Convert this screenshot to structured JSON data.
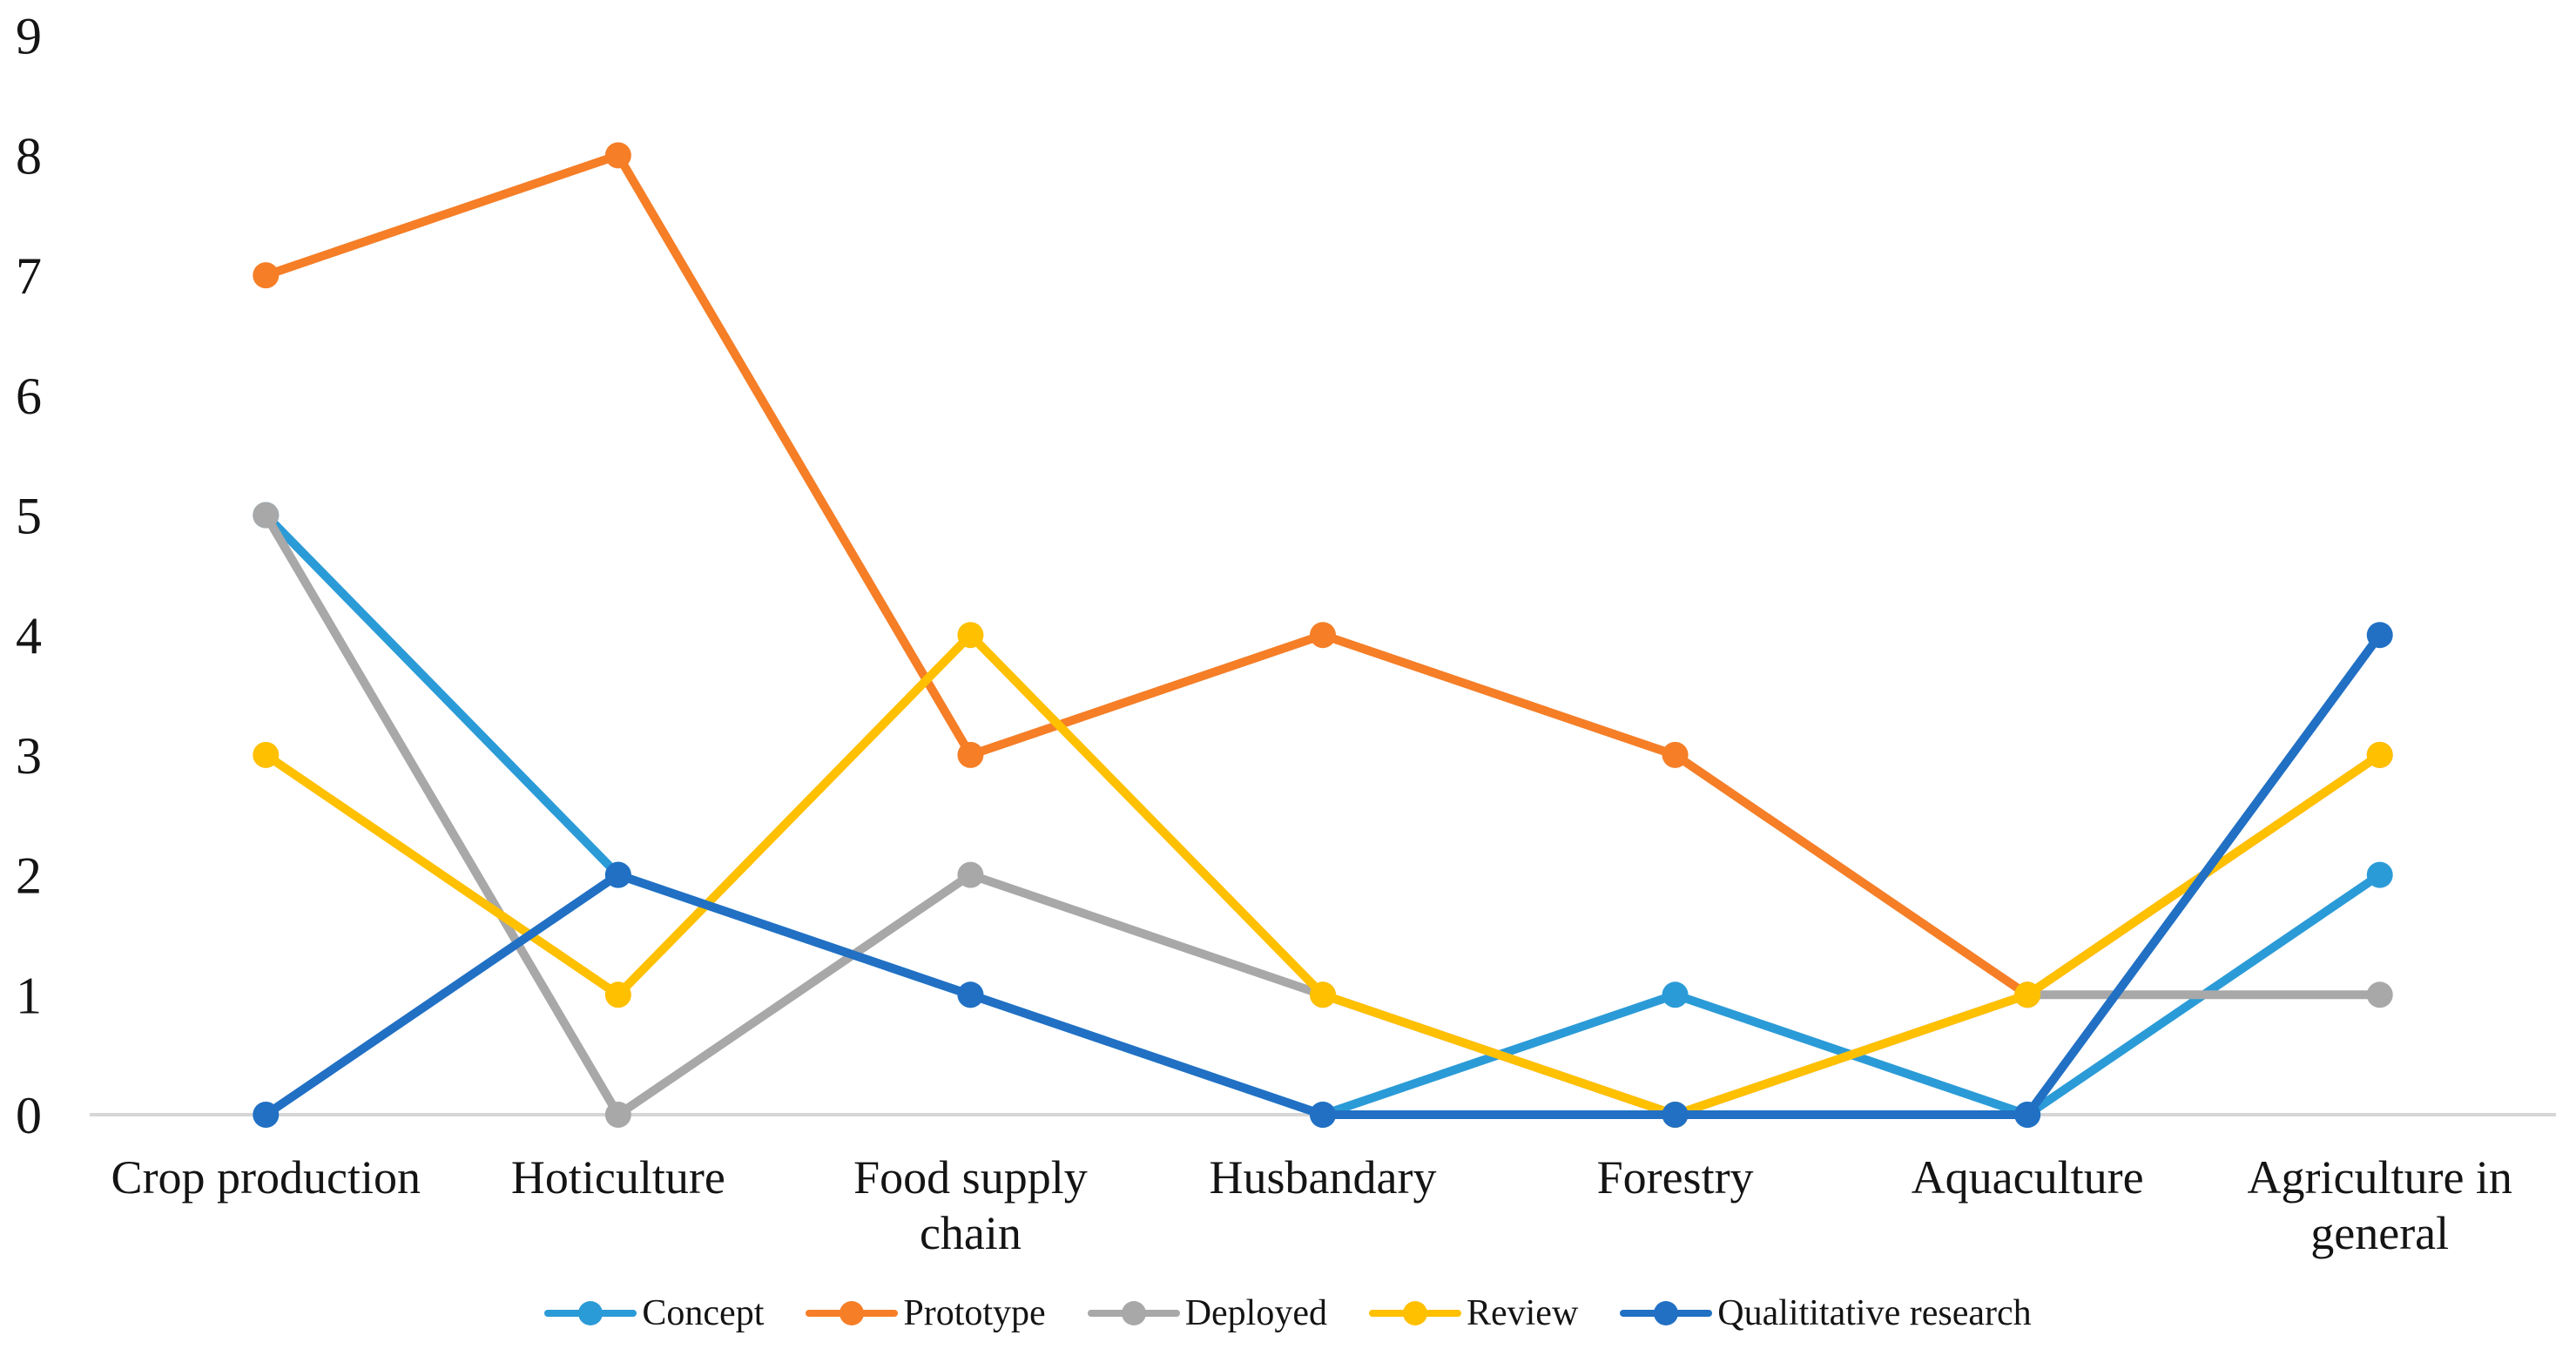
{
  "figure": {
    "background_color": "#FFFFFF",
    "axis_line_color": "#D6D6D6",
    "text_color": "#141414"
  },
  "chart_data": {
    "type": "line",
    "title": "",
    "xlabel": "",
    "ylabel": "",
    "grid": false,
    "legend_position": "bottom",
    "categories": [
      "Crop production",
      "Hoticulture",
      "Food supply chain",
      "Husbandary",
      "Forestry",
      "Aquaculture",
      "Agriculture in general"
    ],
    "x_axis": {
      "tick_lines": [
        [
          "Crop production"
        ],
        [
          "Hoticulture"
        ],
        [
          "Food supply",
          "chain"
        ],
        [
          "Husbandary"
        ],
        [
          "Forestry"
        ],
        [
          "Aquaculture"
        ],
        [
          "Agriculture in",
          "general"
        ]
      ]
    },
    "y_axis": {
      "min": 0,
      "max": 9,
      "tick_step": 1,
      "tick_labels": [
        "0",
        "1",
        "2",
        "3",
        "4",
        "5",
        "6",
        "7",
        "8",
        "9"
      ]
    },
    "series": [
      {
        "name": "Concept",
        "color": "#2B9BD7",
        "values": [
          5,
          2,
          1,
          0,
          1,
          0,
          2
        ]
      },
      {
        "name": "Prototype",
        "color": "#F57E27",
        "values": [
          7,
          8,
          3,
          4,
          3,
          1,
          3
        ]
      },
      {
        "name": "Deployed",
        "color": "#A8A8A8",
        "values": [
          5,
          0,
          2,
          1,
          0,
          1,
          1
        ]
      },
      {
        "name": "Review",
        "color": "#FFC000",
        "values": [
          3,
          1,
          4,
          1,
          0,
          1,
          3
        ]
      },
      {
        "name": "Qualititative research",
        "color": "#2170C4",
        "values": [
          0,
          2,
          1,
          0,
          0,
          0,
          4
        ]
      }
    ]
  }
}
